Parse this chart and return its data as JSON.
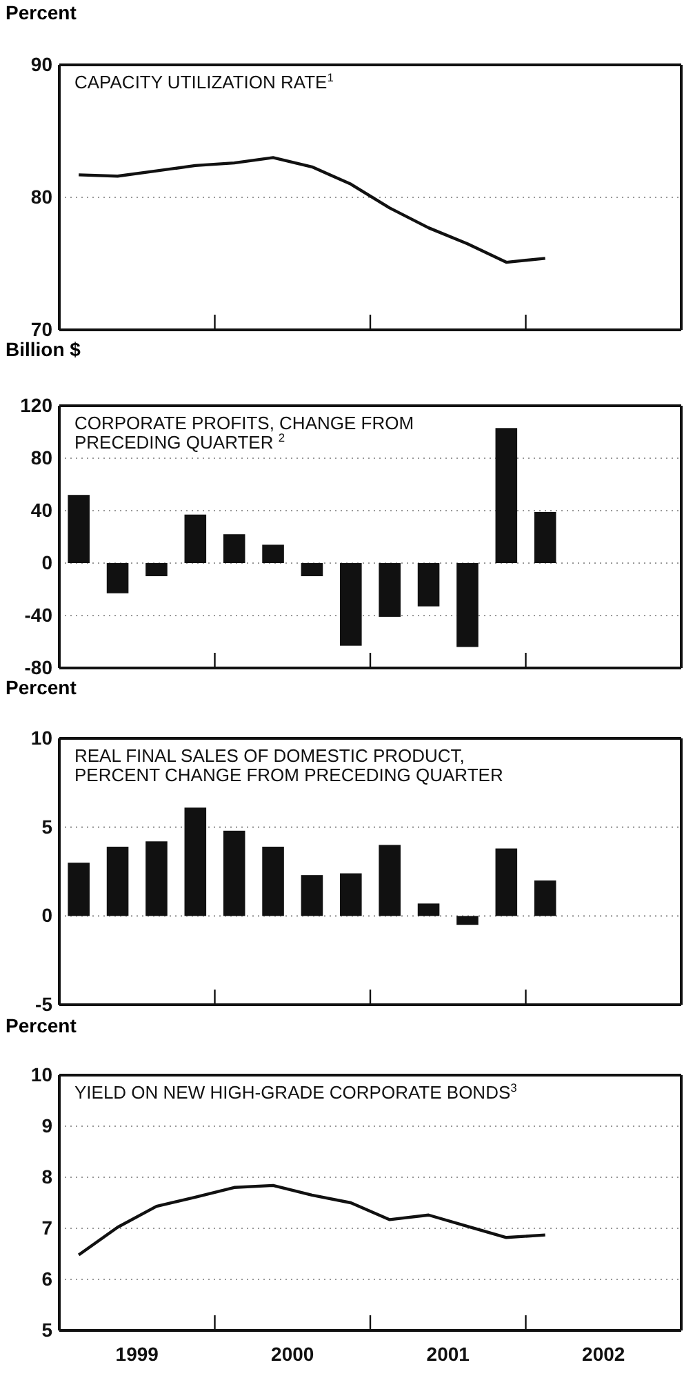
{
  "chart_data": [
    {
      "type": "line",
      "ylabel": "Percent",
      "title": "CAPACITY UTILIZATION RATE$^{1}$",
      "x": [
        1999.125,
        1999.375,
        1999.625,
        1999.875,
        2000.125,
        2000.375,
        2000.625,
        2000.875,
        2001.125,
        2001.375,
        2001.625,
        2001.875,
        2002.125
      ],
      "values": [
        81.7,
        81.6,
        82.0,
        82.4,
        82.6,
        83.0,
        82.3,
        81.0,
        79.2,
        77.7,
        76.5,
        75.1,
        75.4
      ],
      "color": "#111111",
      "xlim": [
        1999,
        2003
      ],
      "xticks": [
        {
          "value": 2000,
          "label": null
        },
        {
          "value": 2001,
          "label": null
        },
        {
          "value": 2002,
          "label": null
        }
      ],
      "ylim": [
        70,
        90
      ],
      "yticks": [
        70,
        80,
        90
      ],
      "grid": "y",
      "tick_labels": "y"
    },
    {
      "type": "bar",
      "ylabel": "Billion $",
      "title": "CORPORATE PROFITS, CHANGE FROM PRECEDING QUARTER $^{2}$",
      "x": [
        1999.125,
        1999.375,
        1999.625,
        1999.875,
        2000.125,
        2000.375,
        2000.625,
        2000.875,
        2001.125,
        2001.375,
        2001.625,
        2001.875,
        2002.125
      ],
      "values": [
        52,
        -23,
        -10,
        37,
        22,
        14,
        -10,
        -63,
        -41,
        -33,
        -64,
        103,
        39
      ],
      "color": "#111111",
      "xlim": [
        1999,
        2003
      ],
      "xticks": [
        {
          "value": 2000,
          "label": null
        },
        {
          "value": 2001,
          "label": null
        },
        {
          "value": 2002,
          "label": null
        }
      ],
      "ylim": [
        -80,
        120
      ],
      "yticks": [
        -80,
        -40,
        0,
        40,
        80,
        120
      ],
      "grid": "y",
      "tick_labels": "y"
    },
    {
      "type": "bar",
      "ylabel": "Percent",
      "title": "REAL FINAL SALES OF DOMESTIC PRODUCT, PERCENT CHANGE FROM PRECEDING QUARTER",
      "x": [
        1999.125,
        1999.375,
        1999.625,
        1999.875,
        2000.125,
        2000.375,
        2000.625,
        2000.875,
        2001.125,
        2001.375,
        2001.625,
        2001.875,
        2002.125
      ],
      "values": [
        3.0,
        3.9,
        4.2,
        6.1,
        4.8,
        3.9,
        2.3,
        2.4,
        4.0,
        0.7,
        -0.5,
        3.8,
        2.0
      ],
      "color": "#111111",
      "xlim": [
        1999,
        2003
      ],
      "xticks": [
        {
          "value": 2000,
          "label": null
        },
        {
          "value": 2001,
          "label": null
        },
        {
          "value": 2002,
          "label": null
        }
      ],
      "ylim": [
        -5,
        10
      ],
      "yticks": [
        -5,
        0,
        5,
        10
      ],
      "grid": "y",
      "tick_labels": "y"
    },
    {
      "type": "line",
      "ylabel": "Percent",
      "title": "YIELD ON NEW HIGH-GRADE CORPORATE BONDS$^{3}$",
      "x": [
        1999.125,
        1999.375,
        1999.625,
        1999.875,
        2000.125,
        2000.375,
        2000.625,
        2000.875,
        2001.125,
        2001.375,
        2001.625,
        2001.875,
        2002.125
      ],
      "values": [
        6.48,
        7.02,
        7.43,
        7.61,
        7.8,
        7.84,
        7.65,
        7.5,
        7.17,
        7.26,
        7.04,
        6.82,
        6.87
      ],
      "color": "#111111",
      "xlim": [
        1999,
        2003
      ],
      "xticks": [
        {
          "value": 1999.5,
          "label": "1999"
        },
        {
          "value": 2000,
          "label": null
        },
        {
          "value": 2000.5,
          "label": "2000"
        },
        {
          "value": 2001,
          "label": null
        },
        {
          "value": 2001.5,
          "label": "2001"
        },
        {
          "value": 2002,
          "label": null
        },
        {
          "value": 2002.5,
          "label": "2002"
        }
      ],
      "ylim": [
        5,
        10
      ],
      "yticks": [
        5,
        6,
        7,
        8,
        9,
        10
      ],
      "grid": "y"
    }
  ]
}
